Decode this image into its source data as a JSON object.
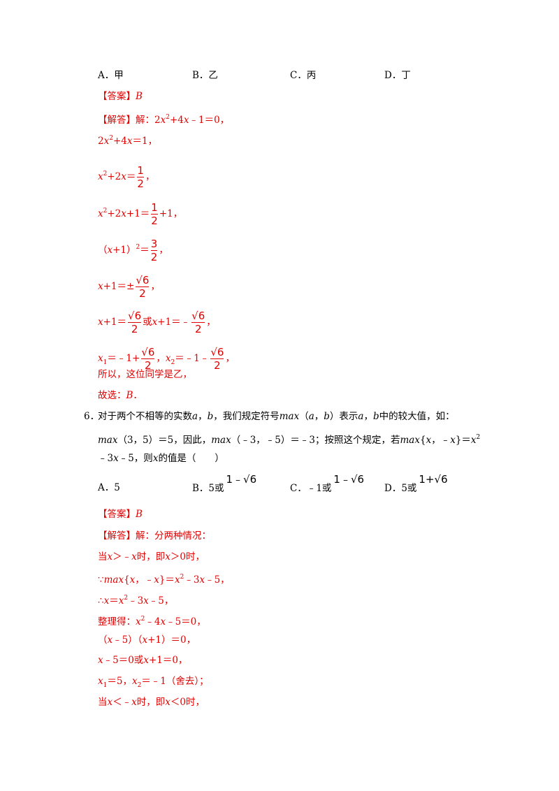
{
  "q5_options": [
    "A．甲",
    "B．乙",
    "C．丙",
    "D．丁"
  ],
  "q5_solution": [
    [
      "【答案】",
      "B"
    ],
    [
      "【解答】解：2",
      "x",
      "2",
      "+4",
      "x",
      "﹣1＝0，"
    ],
    [
      "2",
      "x",
      "2",
      "+4",
      "x",
      "＝1，"
    ],
    [
      "x",
      "2",
      "+2",
      "x",
      "＝",
      [
        "1",
        "2"
      ],
      "，"
    ],
    [
      "x",
      "2",
      "+2",
      "x",
      "+1＝",
      [
        "1",
        "2"
      ],
      "+1，"
    ],
    [
      "（",
      "x",
      "+1）",
      "2",
      "＝",
      [
        "3",
        "2"
      ],
      "，"
    ],
    [
      "x",
      "+1＝±",
      [
        "√6",
        "2"
      ],
      "，"
    ],
    [
      "x",
      "+1＝",
      [
        "√6",
        "2"
      ],
      "或",
      "x",
      "+1＝﹣",
      [
        "√6",
        "2"
      ],
      "，"
    ],
    [
      "x",
      "1",
      "＝﹣1+",
      [
        "√6",
        "2"
      ],
      "，",
      "x",
      "2",
      "＝﹣1﹣",
      [
        "√6",
        "2"
      ],
      "，"
    ],
    [
      "所以，这位同学是乙，"
    ],
    [
      "故选：",
      "B",
      "．"
    ]
  ],
  "q6_number": "6．",
  "q6_stem": [
    [
      "对于两个不相等的实数",
      "a",
      "，",
      "b",
      "，我们规定符号",
      "max",
      "（",
      "a",
      "，",
      "b",
      "）表示",
      "a",
      "，",
      "b",
      "中的较大值，如："
    ],
    [
      "max",
      "（3，5）＝5，因此，",
      "max",
      "（﹣3，﹣5）＝﹣3；按照这个规定，若",
      "max",
      "{",
      "x",
      "，﹣",
      "x",
      "}＝",
      "x",
      "2"
    ],
    [
      "﹣3",
      "x",
      "﹣5，则",
      "x",
      "的值是（　　）"
    ]
  ],
  "q6_options": [
    [
      "A．5"
    ],
    [
      "B．5或",
      "1﹣√6"
    ],
    [
      "C．﹣1或",
      "1﹣√6"
    ],
    [
      "D．5或",
      "1+√6"
    ]
  ],
  "q6_solution": [
    [
      "【答案】",
      "B"
    ],
    [
      "【解答】解：分两种情况："
    ],
    [
      "当",
      "x",
      "＞﹣",
      "x",
      "时，即",
      "x",
      "＞0时，"
    ],
    [
      "∵",
      "max",
      "{",
      "x",
      "，﹣",
      "x",
      "}＝",
      "x",
      "2",
      "﹣3",
      "x",
      "﹣5，"
    ],
    [
      "∴",
      "x",
      "＝",
      "x",
      "2",
      "﹣3",
      "x",
      "﹣5，"
    ],
    [
      "整理得：",
      "x",
      "2",
      "﹣4",
      "x",
      "﹣5＝0，"
    ],
    [
      "（",
      "x",
      "﹣5）（",
      "x",
      "+1）＝0，"
    ],
    [
      "x",
      "﹣5＝0或",
      "x",
      "+1＝0，"
    ],
    [
      "x",
      "1",
      "＝5，",
      "x",
      "2",
      "＝﹣1（舍去）；"
    ],
    [
      "当",
      "x",
      "＜﹣",
      "x",
      "时，即",
      "x",
      "＜0时，"
    ]
  ]
}
